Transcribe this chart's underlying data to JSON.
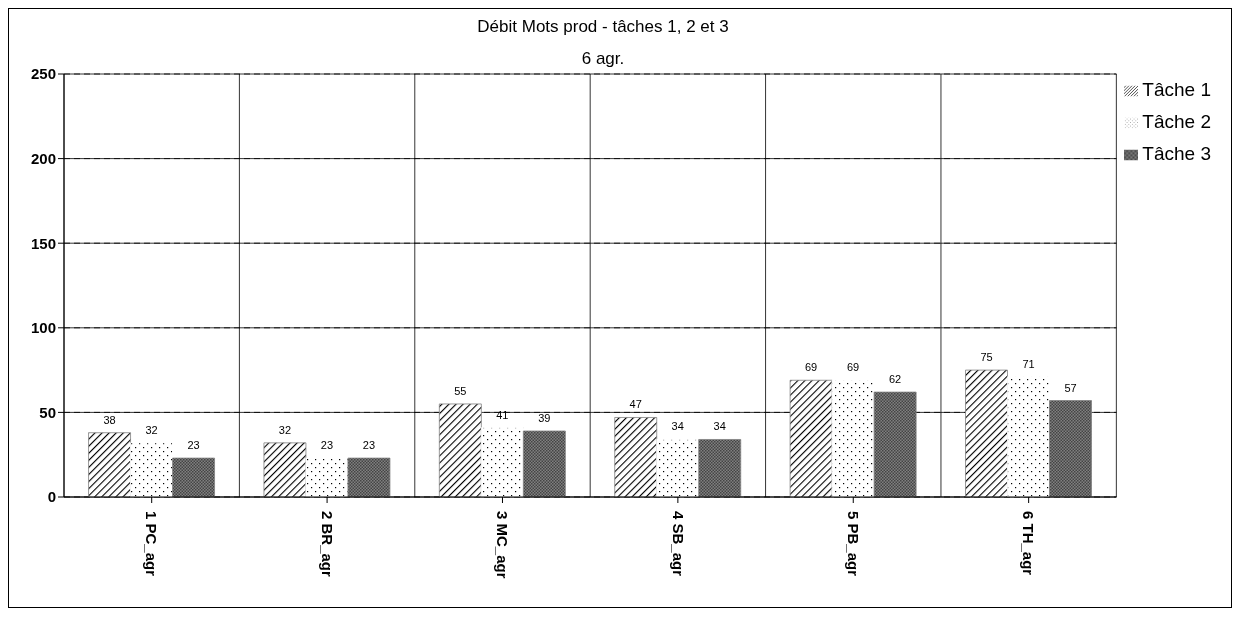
{
  "chart_data": {
    "type": "bar",
    "title": "Débit Mots prod - tâches 1, 2 et 3",
    "subtitle": "6 agr.",
    "categories": [
      "1 PC_agr",
      "2 BR_agr",
      "3 MC_agr",
      "4 SB_agr",
      "5 PB_agr",
      "6 TH_agr"
    ],
    "series": [
      {
        "name": "Tâche 1",
        "color": "#808080",
        "values": [
          38,
          32,
          55,
          47,
          69,
          75
        ]
      },
      {
        "name": "Tâche 2",
        "color": "#ffffff",
        "values": [
          32,
          23,
          41,
          34,
          69,
          71
        ]
      },
      {
        "name": "Tâche 3",
        "color": "#808080",
        "values": [
          23,
          23,
          39,
          34,
          62,
          57
        ]
      }
    ],
    "ylim": [
      0,
      250
    ],
    "yticks": [
      0,
      50,
      100,
      150,
      200,
      250
    ],
    "grid": true,
    "legend": "top right",
    "data_labels": true
  }
}
